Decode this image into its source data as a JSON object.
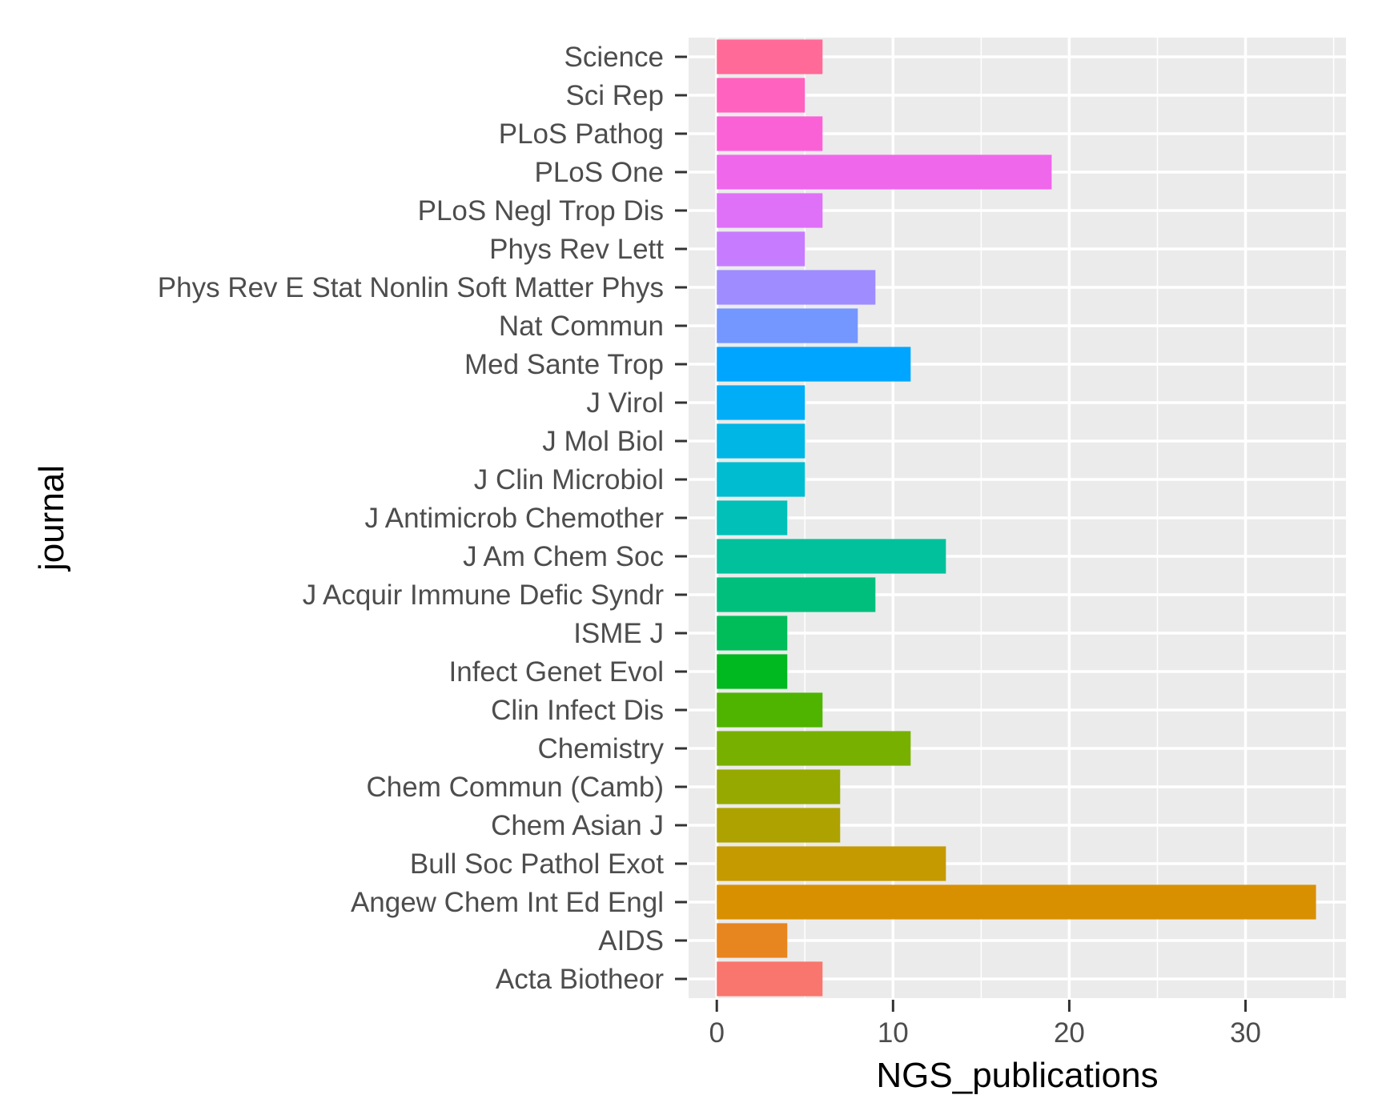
{
  "chart_data": {
    "type": "bar",
    "orientation": "horizontal",
    "title": "",
    "xlabel": "NGS_publications",
    "ylabel": "journal",
    "xlim": [
      -1.6,
      35.7
    ],
    "x_ticks": [
      0,
      10,
      20,
      30
    ],
    "x_tick_labels": [
      "0",
      "10",
      "20",
      "30"
    ],
    "grid": true,
    "legend": "none",
    "categories": [
      "Acta Biotheor",
      "AIDS",
      "Angew Chem Int Ed Engl",
      "Bull Soc Pathol Exot",
      "Chem Asian J",
      "Chem Commun (Camb)",
      "Chemistry",
      "Clin Infect Dis",
      "Infect Genet Evol",
      "ISME J",
      "J Acquir Immune Defic Syndr",
      "J Am Chem Soc",
      "J Antimicrob Chemother",
      "J Clin Microbiol",
      "J Mol Biol",
      "J Virol",
      "Med Sante Trop",
      "Nat Commun",
      "Phys Rev E Stat Nonlin Soft Matter Phys",
      "Phys Rev Lett",
      "PLoS Negl Trop Dis",
      "PLoS One",
      "PLoS Pathog",
      "Sci Rep",
      "Science"
    ],
    "values": [
      6,
      4,
      34,
      13,
      7,
      7,
      11,
      6,
      4,
      4,
      9,
      13,
      4,
      5,
      5,
      5,
      11,
      8,
      9,
      5,
      6,
      19,
      6,
      5,
      6
    ],
    "colors": [
      "#F8766D",
      "#E7851E",
      "#D89000",
      "#C49A00",
      "#AEA200",
      "#95A900",
      "#78B000",
      "#4EB400",
      "#00B81F",
      "#00BC59",
      "#00BF7D",
      "#00C19C",
      "#00C0B8",
      "#00BCD1",
      "#00B6E5",
      "#00ADF6",
      "#00A5FF",
      "#7496FF",
      "#9F8CFF",
      "#C77CFF",
      "#DF70F8",
      "#EF67EB",
      "#FB61D7",
      "#FF62BF",
      "#FF6A98"
    ],
    "panel_background": "#EBEBEB",
    "grid_color": "#FFFFFF"
  }
}
